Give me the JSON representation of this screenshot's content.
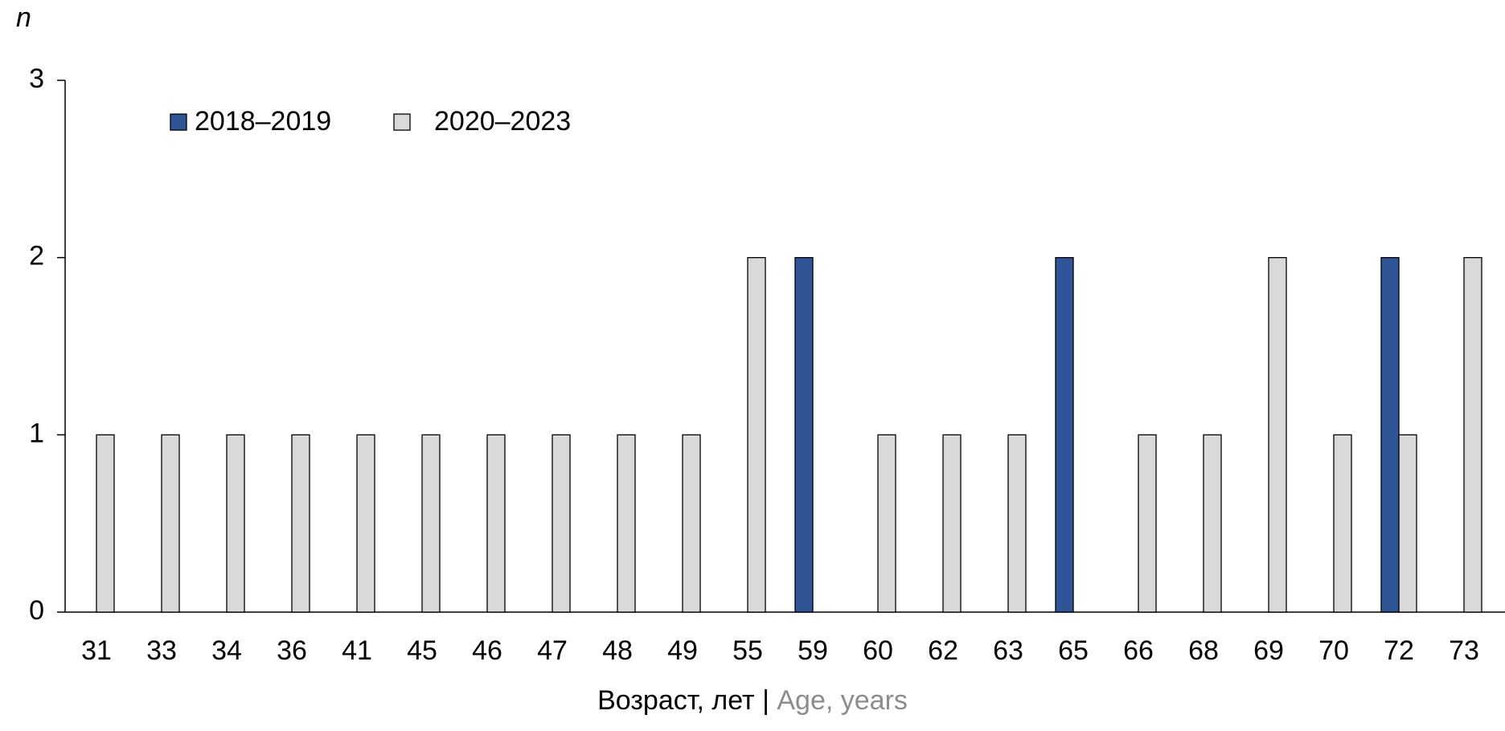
{
  "chart_data": {
    "type": "bar",
    "ylabel": "n",
    "xlabel": [
      "Возраст, лет",
      "|",
      "Age, years"
    ],
    "categories": [
      "31",
      "33",
      "34",
      "36",
      "41",
      "45",
      "46",
      "47",
      "48",
      "49",
      "55",
      "59",
      "60",
      "62",
      "63",
      "65",
      "66",
      "68",
      "69",
      "70",
      "72",
      "73"
    ],
    "series": [
      {
        "name": "2018–2019",
        "color": "#2f5597",
        "values": [
          0,
          0,
          0,
          0,
          0,
          0,
          0,
          0,
          0,
          0,
          0,
          2,
          0,
          0,
          0,
          2,
          0,
          0,
          0,
          0,
          2,
          0
        ]
      },
      {
        "name": "2020–2023",
        "color": "#d9d9d9",
        "values": [
          1,
          1,
          1,
          1,
          1,
          1,
          1,
          1,
          1,
          1,
          2,
          0,
          1,
          1,
          1,
          0,
          1,
          1,
          2,
          1,
          1,
          2
        ]
      }
    ],
    "ylim": [
      0,
      3
    ],
    "yticks": [
      0,
      1,
      2,
      3
    ],
    "grid": false
  }
}
